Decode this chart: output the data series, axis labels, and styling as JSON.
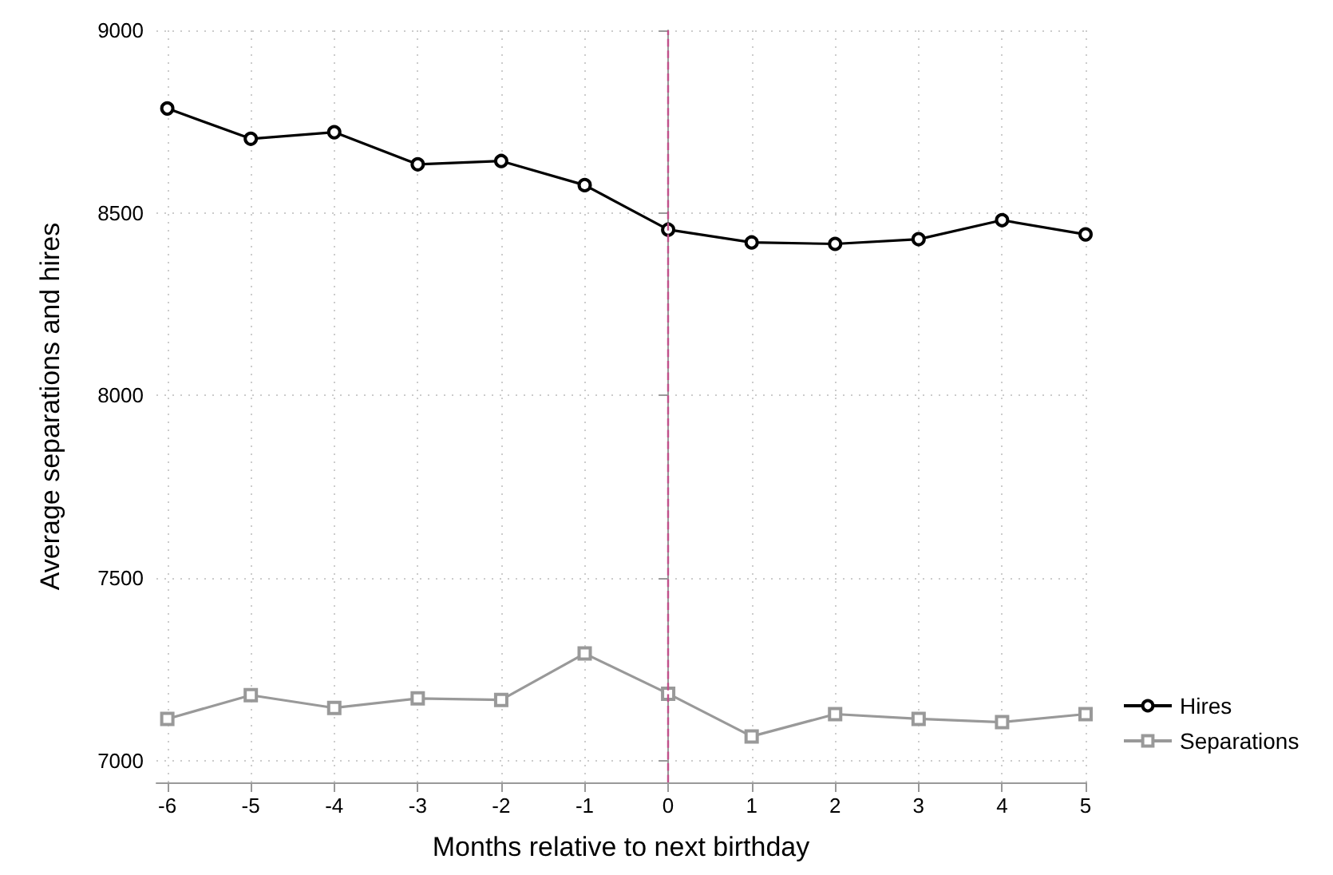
{
  "chart_data": {
    "type": "line",
    "xlabel": "Months relative to next birthday",
    "ylabel": "Average separations and hires",
    "x": [
      -6,
      -5,
      -4,
      -3,
      -2,
      -1,
      0,
      1,
      2,
      3,
      4,
      5
    ],
    "series": [
      {
        "name": "Hires",
        "color": "#000000",
        "marker": "circle",
        "values": [
          8786,
          8703,
          8721,
          8633,
          8642,
          8576,
          8454,
          8419,
          8415,
          8428,
          8480,
          8441
        ]
      },
      {
        "name": "Separations",
        "color": "#999999",
        "marker": "square",
        "values": [
          7114,
          7179,
          7144,
          7170,
          7166,
          7293,
          7183,
          7066,
          7127,
          7114,
          7105,
          7127
        ]
      }
    ],
    "xlim": [
      -6.13,
      5
    ],
    "xticks": [
      -6,
      -5,
      -4,
      -3,
      -2,
      -1,
      0,
      1,
      2,
      3,
      4,
      5
    ],
    "ylim": [
      6940,
      9000
    ],
    "yticks": [
      7000,
      7500,
      8000,
      8500,
      9000
    ],
    "grid": true,
    "legend": "right",
    "line_style": "solid",
    "ref_lines": [
      {
        "axis": "x",
        "value": 0,
        "color": "#c0508a",
        "line_style": "dashed"
      }
    ]
  }
}
